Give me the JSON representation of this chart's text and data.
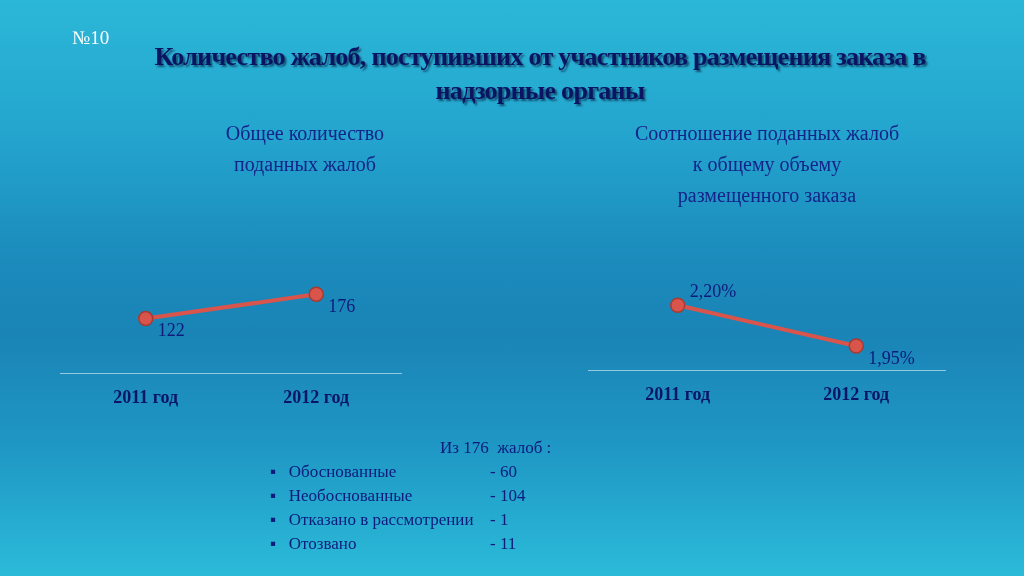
{
  "chart_data": [
    {
      "type": "other",
      "title": "Количество жалоб, поступивших от участников размещения заказа в надзорные органы",
      "annotations": [
        "№10"
      ]
    },
    {
      "type": "line",
      "title": "Общее количество\nподанных жалоб",
      "categories": [
        "2011 год",
        "2012 год"
      ],
      "values": [
        122,
        176
      ],
      "color": "#d9544b",
      "data_labels": true,
      "marker": "circle",
      "tick_labels": "x"
    },
    {
      "type": "line",
      "title": "Соотношение поданных жалоб\nк общему объему\nразмещенного заказа",
      "categories": [
        "2011 год",
        "2012 год"
      ],
      "values": [
        2.2,
        1.95
      ],
      "value_labels": [
        "2,20%",
        "1,95%"
      ],
      "color": "#d9544b",
      "marker": "circle",
      "tick_labels": "x"
    },
    {
      "type": "other",
      "title": "Из 176  жалоб :",
      "annotations": [
        "▪   Обоснованные\t- 60",
        "▪   Необоснованные\t- 104",
        "▪   Отказано в рассмотрении\t- 1",
        "▪   Отозвано\t- 11"
      ]
    }
  ]
}
